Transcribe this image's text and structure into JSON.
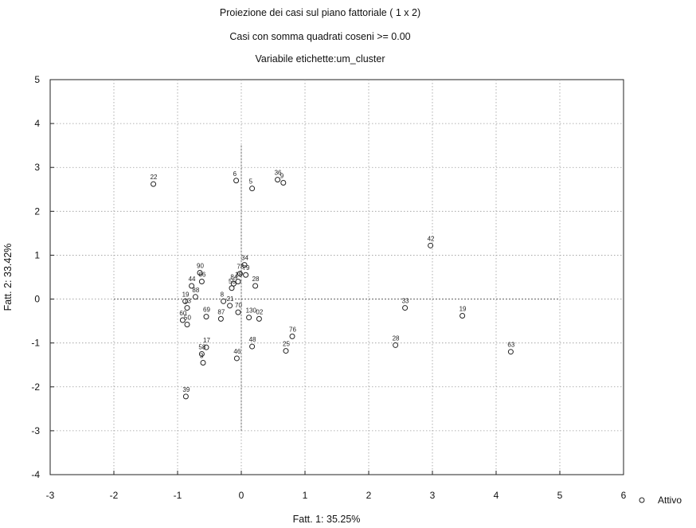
{
  "chart_data": {
    "type": "scatter",
    "title_lines": [
      "Proiezione dei casi sul piano fattoriale ( 1 x 2)",
      "Casi con somma quadrati coseni >= 0.00",
      "Variabile etichette:um_cluster"
    ],
    "xlabel": "Fatt. 1: 35.25%",
    "ylabel": "Fatt. 2: 33.42%",
    "xlim": [
      -3,
      6
    ],
    "ylim": [
      -4,
      5
    ],
    "xticks": [
      "-3",
      "-2",
      "-1",
      "0",
      "1",
      "2",
      "3",
      "4",
      "5",
      "6"
    ],
    "yticks": [
      "5",
      "4",
      "3",
      "2",
      "1",
      "0",
      "-1",
      "-2",
      "-3",
      "-4"
    ],
    "grid": true,
    "legend": {
      "label": "Attivo",
      "position": "bottom-right",
      "marker": "circle"
    },
    "points": [
      {
        "label": "22",
        "x": -1.38,
        "y": 2.62
      },
      {
        "label": "6",
        "x": -0.08,
        "y": 2.7
      },
      {
        "label": "5",
        "x": 0.17,
        "y": 2.52
      },
      {
        "label": "36",
        "x": 0.57,
        "y": 2.72
      },
      {
        "label": "9",
        "x": 0.66,
        "y": 2.65
      },
      {
        "label": "42",
        "x": 2.97,
        "y": 1.22
      },
      {
        "label": "34",
        "x": 0.05,
        "y": 0.78
      },
      {
        "label": "78",
        "x": -0.02,
        "y": 0.58
      },
      {
        "label": "79",
        "x": 0.07,
        "y": 0.55
      },
      {
        "label": "28",
        "x": 0.22,
        "y": 0.3
      },
      {
        "label": "18",
        "x": -0.05,
        "y": 0.4
      },
      {
        "label": "84",
        "x": -0.12,
        "y": 0.35
      },
      {
        "label": "55",
        "x": -0.15,
        "y": 0.25
      },
      {
        "label": "90",
        "x": -0.65,
        "y": 0.6
      },
      {
        "label": "66",
        "x": -0.62,
        "y": 0.4
      },
      {
        "label": "44",
        "x": -0.78,
        "y": 0.3
      },
      {
        "label": "88",
        "x": -0.72,
        "y": 0.05
      },
      {
        "label": "19",
        "x": -0.88,
        "y": -0.05
      },
      {
        "label": "13",
        "x": -0.85,
        "y": -0.2
      },
      {
        "label": "60",
        "x": -0.92,
        "y": -0.48
      },
      {
        "label": "50",
        "x": -0.85,
        "y": -0.58
      },
      {
        "label": "69",
        "x": -0.55,
        "y": -0.4
      },
      {
        "label": "87",
        "x": -0.32,
        "y": -0.45
      },
      {
        "label": "8",
        "x": -0.28,
        "y": -0.05
      },
      {
        "label": "21",
        "x": -0.18,
        "y": -0.15
      },
      {
        "label": "70",
        "x": -0.05,
        "y": -0.3
      },
      {
        "label": "13b",
        "x": 0.12,
        "y": -0.42
      },
      {
        "label": "02",
        "x": 0.28,
        "y": -0.45
      },
      {
        "label": "33",
        "x": 2.57,
        "y": -0.2
      },
      {
        "label": "19b",
        "x": 3.47,
        "y": -0.38
      },
      {
        "label": "76",
        "x": 0.8,
        "y": -0.85
      },
      {
        "label": "25",
        "x": 0.7,
        "y": -1.18
      },
      {
        "label": "48",
        "x": 0.17,
        "y": -1.08
      },
      {
        "label": "28b",
        "x": 2.42,
        "y": -1.05
      },
      {
        "label": "63",
        "x": 4.23,
        "y": -1.2
      },
      {
        "label": "17",
        "x": -0.55,
        "y": -1.1
      },
      {
        "label": "58",
        "x": -0.62,
        "y": -1.25
      },
      {
        "label": "3",
        "x": -0.6,
        "y": -1.45
      },
      {
        "label": "46",
        "x": -0.07,
        "y": -1.35
      },
      {
        "label": "39",
        "x": -0.87,
        "y": -2.22
      }
    ],
    "point_display_labels": {
      "13b": "130",
      "19b": "19",
      "28b": "28"
    }
  }
}
